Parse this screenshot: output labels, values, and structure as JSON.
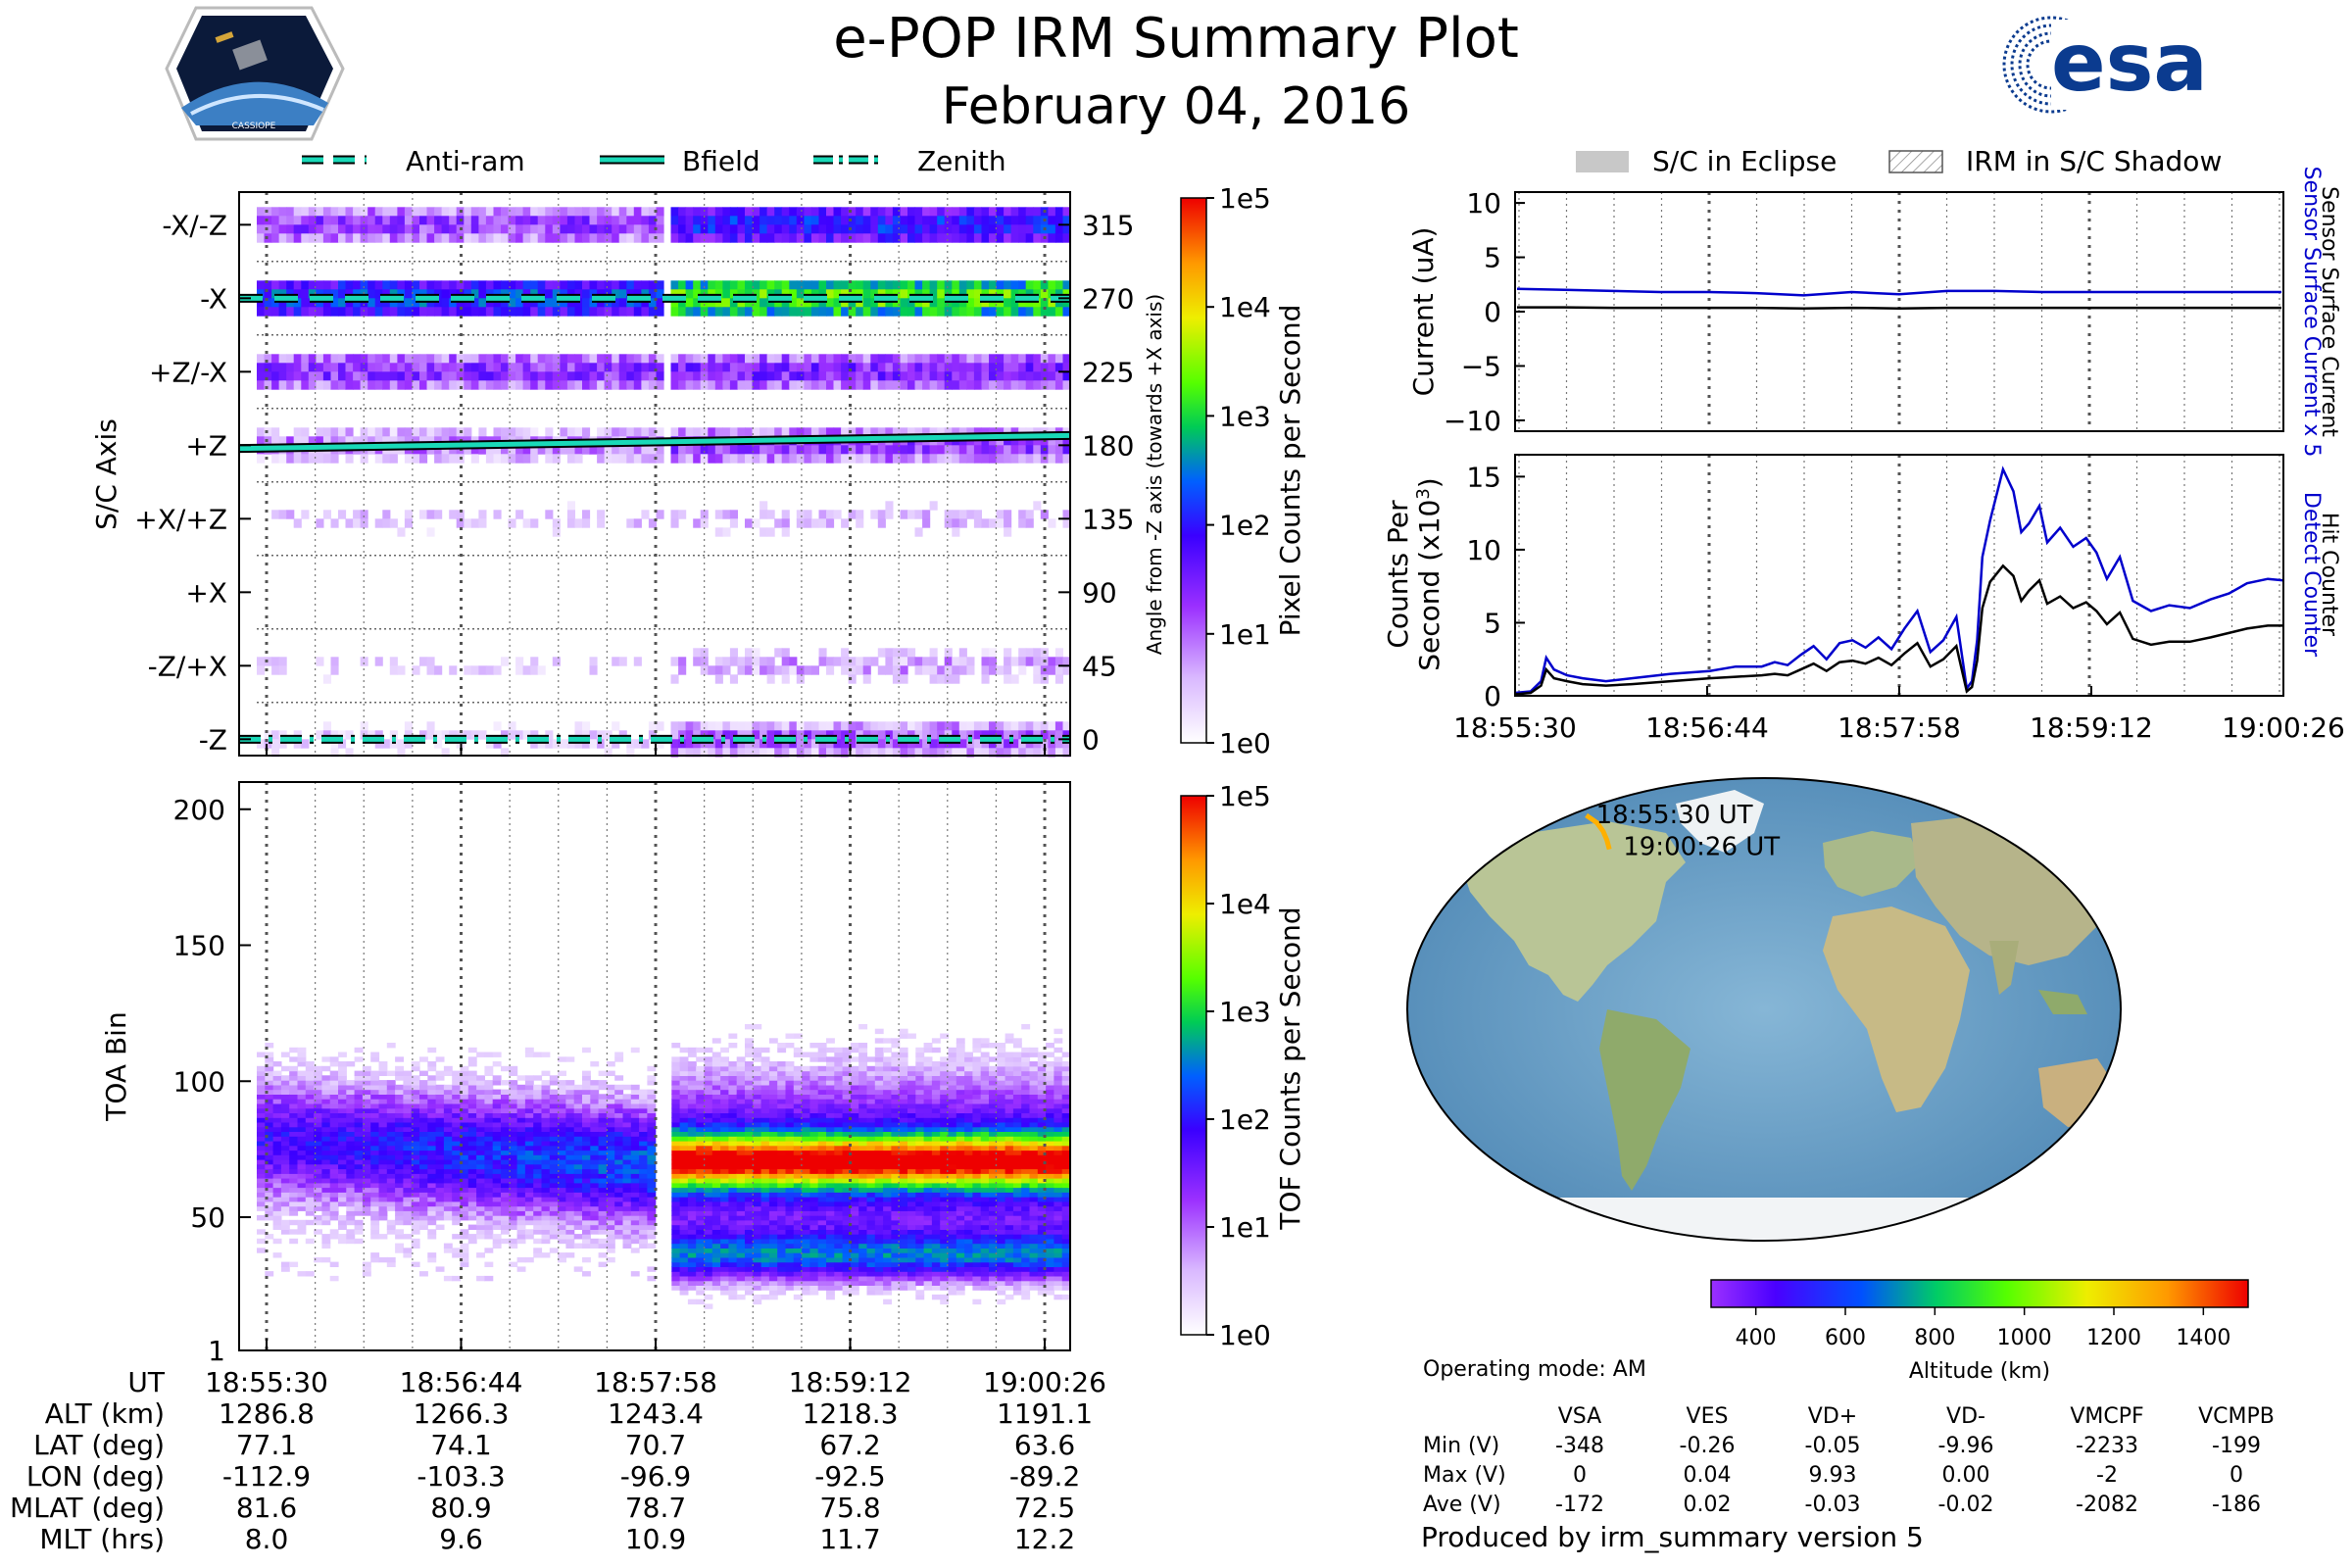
{
  "title": "e-POP IRM Summary Plot",
  "date": "February 04, 2016",
  "logos": {
    "left": "CASSIOPE",
    "right": "esa"
  },
  "colors": {
    "cyan": "#1ad9b8",
    "blue": "#0000cc",
    "black": "#000000",
    "purple": "#9b30ff",
    "orange": "#ffb000"
  },
  "chart_data": [
    {
      "type": "heatmap",
      "id": "pixel_counts",
      "ylabel": "S/C Axis",
      "ylabel_right": "Angle from -Z axis (towards +X axis)",
      "y_tick_labels_left": [
        "-X/-Z",
        "-X",
        "+Z/-X",
        "+Z",
        "+X/+Z",
        "+X",
        "-Z/+X",
        "-Z"
      ],
      "y_tick_labels_right": [
        "315",
        "270",
        "225",
        "180",
        "135",
        "90",
        "45",
        "0"
      ],
      "ylim": [
        -10,
        335
      ],
      "x_ticks": [
        "18:55:30",
        "18:56:44",
        "18:57:58",
        "18:59:12",
        "19:00:26"
      ],
      "legend": [
        "Anti-ram",
        "Bfield",
        "Zenith"
      ],
      "colorbar": {
        "label": "Pixel Counts per Second",
        "ticks": [
          "1e5",
          "1e4",
          "1e3",
          "1e2",
          "1e1",
          "1e0"
        ],
        "scale": "log"
      },
      "lines": [
        {
          "name": "Anti-ram",
          "style": "dashed",
          "start": 270,
          "end": 270
        },
        {
          "name": "Bfield",
          "style": "solid",
          "start": 178,
          "end": 186
        },
        {
          "name": "Zenith",
          "style": "dash-dot",
          "start": 0,
          "end": 0
        }
      ],
      "bands": [
        {
          "angle": 315,
          "log_before": 1.2,
          "log_after": 2.0
        },
        {
          "angle": 270,
          "log_before": 2.2,
          "log_after": 3.2
        },
        {
          "angle": 225,
          "log_before": 1.3,
          "log_after": 1.4
        },
        {
          "angle": 180,
          "log_before": 0.8,
          "log_after": 1.2
        },
        {
          "angle": 135,
          "log_before": 0.3,
          "log_after": 0.4
        },
        {
          "angle": 90,
          "log_before": 0.1,
          "log_after": 0.1
        },
        {
          "angle": 45,
          "log_before": 0.2,
          "log_after": 0.6
        },
        {
          "angle": 0,
          "log_before": 0.3,
          "log_after": 1.0
        }
      ]
    },
    {
      "type": "heatmap",
      "id": "tof_counts",
      "ylabel": "TOA Bin",
      "y_ticks": [
        1,
        50,
        100,
        150,
        200
      ],
      "ylim": [
        1,
        210
      ],
      "x_ticks": [
        "18:55:30",
        "18:56:44",
        "18:57:58",
        "18:59:12",
        "19:00:26"
      ],
      "colorbar": {
        "label": "TOF Counts per Second",
        "ticks": [
          "1e5",
          "1e4",
          "1e3",
          "1e2",
          "1e1",
          "1e0"
        ],
        "scale": "log"
      },
      "peak_bin_before": 78,
      "peak_bin_after": 70,
      "secondary_bin_after": 35
    },
    {
      "type": "line",
      "id": "current",
      "ylabel": "Current (uA)",
      "right_labels": [
        "Sensor Surface Current x 5",
        "Sensor Surface Current"
      ],
      "ylim": [
        -11,
        11
      ],
      "y_ticks": [
        10,
        5,
        0,
        -5,
        -10
      ],
      "series": [
        {
          "name": "Sensor Surface Current x 5",
          "color": "#0000cc",
          "values": [
            2.1,
            2.0,
            1.9,
            1.8,
            1.8,
            1.7,
            1.5,
            1.8,
            1.6,
            1.9,
            1.9,
            1.8,
            1.8,
            1.8,
            1.8,
            1.8,
            1.8
          ]
        },
        {
          "name": "Sensor Surface Current",
          "color": "#000000",
          "values": [
            0.4,
            0.4,
            0.35,
            0.35,
            0.35,
            0.35,
            0.3,
            0.35,
            0.3,
            0.35,
            0.35,
            0.35,
            0.35,
            0.35,
            0.35,
            0.35,
            0.35
          ]
        }
      ]
    },
    {
      "type": "line",
      "id": "counts",
      "ylabel": "Counts Per Second (x10³)",
      "right_labels": [
        "Detect Counter",
        "Hit Counter"
      ],
      "ylim": [
        0,
        16.5
      ],
      "y_ticks": [
        0,
        5,
        10,
        15
      ],
      "x_ticks": [
        "18:55:30",
        "18:56:44",
        "18:57:58",
        "18:59:12",
        "19:00:26"
      ],
      "x_range": [
        0,
        296
      ],
      "series": [
        {
          "name": "Detect Counter",
          "color": "#0000cc",
          "x": [
            0,
            6,
            10,
            12,
            15,
            20,
            26,
            35,
            45,
            60,
            75,
            85,
            95,
            100,
            105,
            110,
            115,
            120,
            125,
            130,
            135,
            140,
            145,
            150,
            155,
            160,
            165,
            170,
            174,
            176,
            178,
            180,
            183,
            188,
            192,
            195,
            198,
            202,
            205,
            210,
            215,
            220,
            224,
            228,
            233,
            238,
            245,
            252,
            260,
            268,
            275,
            282,
            290,
            296
          ],
          "values": [
            0.2,
            0.3,
            1.0,
            2.6,
            1.8,
            1.4,
            1.2,
            1.0,
            1.2,
            1.5,
            1.7,
            2.0,
            2.0,
            2.3,
            2.1,
            2.8,
            3.4,
            2.5,
            3.6,
            3.8,
            3.3,
            4.0,
            3.2,
            4.6,
            5.8,
            3.0,
            3.8,
            5.4,
            0.5,
            1.0,
            3.8,
            9.5,
            12.0,
            15.5,
            14.0,
            11.2,
            11.8,
            13.0,
            10.5,
            11.5,
            10.2,
            10.8,
            9.8,
            8.0,
            9.5,
            6.5,
            5.8,
            6.2,
            6.0,
            6.6,
            7.0,
            7.7,
            8.0,
            7.9
          ]
        },
        {
          "name": "Hit Counter",
          "color": "#000000",
          "x": [
            0,
            6,
            10,
            12,
            15,
            20,
            26,
            35,
            45,
            60,
            75,
            85,
            95,
            100,
            105,
            110,
            115,
            120,
            125,
            130,
            135,
            140,
            145,
            150,
            155,
            160,
            165,
            170,
            174,
            176,
            178,
            180,
            183,
            188,
            192,
            195,
            198,
            202,
            205,
            210,
            215,
            220,
            224,
            228,
            233,
            238,
            245,
            252,
            260,
            268,
            275,
            282,
            290,
            296
          ],
          "values": [
            0.1,
            0.2,
            0.7,
            1.8,
            1.2,
            1.0,
            0.8,
            0.7,
            0.8,
            1.0,
            1.2,
            1.3,
            1.4,
            1.5,
            1.4,
            1.8,
            2.2,
            1.7,
            2.3,
            2.4,
            2.2,
            2.6,
            2.1,
            2.9,
            3.6,
            2.0,
            2.5,
            3.4,
            0.3,
            0.6,
            2.4,
            6.0,
            7.8,
            8.9,
            8.2,
            6.5,
            7.2,
            7.9,
            6.3,
            6.8,
            6.0,
            6.4,
            5.8,
            4.9,
            5.7,
            3.9,
            3.5,
            3.7,
            3.7,
            4.0,
            4.3,
            4.6,
            4.8,
            4.8
          ]
        }
      ]
    }
  ],
  "map": {
    "start_label": "18:55:30 UT",
    "end_label": "19:00:26 UT",
    "track": [
      {
        "lat": 77.1,
        "lon": -112.9
      },
      {
        "lat": 74.1,
        "lon": -103.3
      },
      {
        "lat": 70.7,
        "lon": -96.9
      },
      {
        "lat": 67.2,
        "lon": -92.5
      },
      {
        "lat": 63.6,
        "lon": -89.2
      }
    ],
    "colorbar": {
      "label": "Altitude (km)",
      "ticks": [
        "400",
        "600",
        "800",
        "1000",
        "1200",
        "1400"
      ],
      "range": [
        300,
        1500
      ]
    }
  },
  "ephemeris": {
    "row_labels": [
      "UT",
      "ALT (km)",
      "LAT (deg)",
      "LON (deg)",
      "MLAT (deg)",
      "MLT (hrs)"
    ],
    "columns": [
      [
        "18:55:30",
        "1286.8",
        "77.1",
        "-112.9",
        "81.6",
        "8.0"
      ],
      [
        "18:56:44",
        "1266.3",
        "74.1",
        "-103.3",
        "80.9",
        "9.6"
      ],
      [
        "18:57:58",
        "1243.4",
        "70.7",
        "-96.9",
        "78.7",
        "10.9"
      ],
      [
        "18:59:12",
        "1218.3",
        "67.2",
        "-92.5",
        "75.8",
        "11.7"
      ],
      [
        "19:00:26",
        "1191.1",
        "63.6",
        "-89.2",
        "72.5",
        "12.2"
      ]
    ]
  },
  "legend_right": {
    "eclipse": "S/C in Eclipse",
    "shadow": "IRM in S/C Shadow"
  },
  "operating_mode": "Operating mode: AM",
  "voltages": {
    "headers": [
      "VSA",
      "VES",
      "VD+",
      "VD-",
      "VMCPF",
      "VCMPB"
    ],
    "rows": [
      {
        "label": "Min (V)",
        "values": [
          "-348",
          "-0.26",
          "-0.05",
          "-9.96",
          "-2233",
          "-199"
        ]
      },
      {
        "label": "Max (V)",
        "values": [
          "0",
          "0.04",
          "9.93",
          "0.00",
          "-2",
          "0"
        ]
      },
      {
        "label": "Ave (V)",
        "values": [
          "-172",
          "0.02",
          "-0.03",
          "-0.02",
          "-2082",
          "-186"
        ]
      }
    ]
  },
  "footer": "Produced by irm_summary version 5"
}
